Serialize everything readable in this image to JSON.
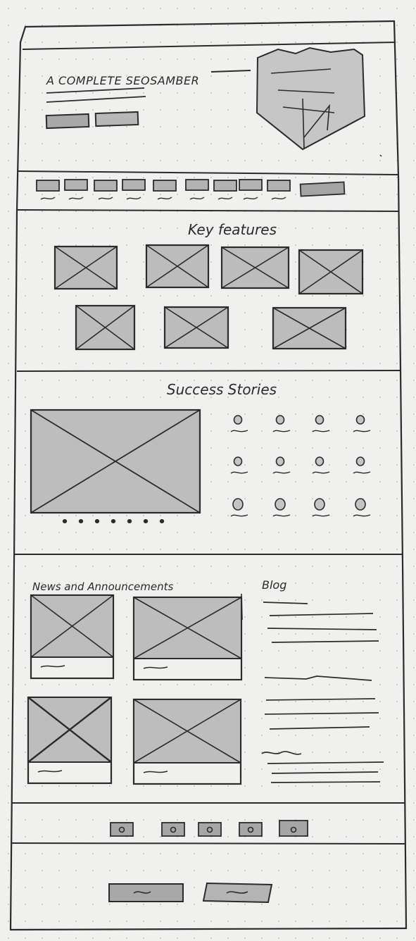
{
  "hero": {
    "headline": "A COMPLETE SEOSAMBER"
  },
  "nav": {
    "items": [
      "",
      "",
      "",
      "",
      "",
      "",
      "",
      "",
      ""
    ],
    "cta": ""
  },
  "features": {
    "title": "Key features",
    "card_count": 7
  },
  "stories": {
    "title": "Success Stories",
    "carousel_dots": 7,
    "logo_rows": 3,
    "logo_cols": 4
  },
  "news": {
    "title": "News and Announcements",
    "items": 4
  },
  "blog": {
    "title": "Blog"
  },
  "footer": {
    "social_icons": 5,
    "buttons": 2
  },
  "colors": {
    "ink": "#2b2b2b",
    "fill": "#b9b9b9",
    "paper": "#f0f0ef"
  }
}
